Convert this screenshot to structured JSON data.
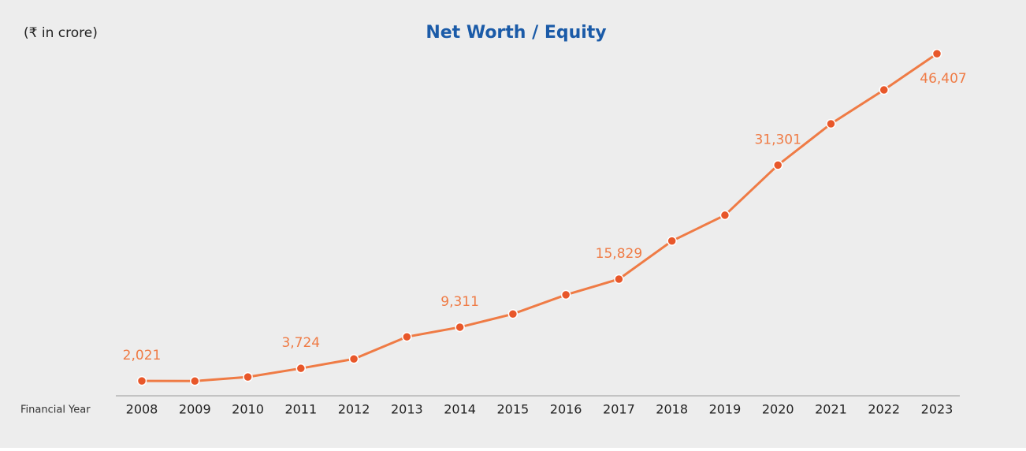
{
  "chart_data": {
    "type": "line",
    "title": "Net Worth / Equity",
    "unit_label": "(₹ in crore)",
    "xlabel": "Financial Year",
    "categories": [
      "2008",
      "2009",
      "2010",
      "2011",
      "2012",
      "2013",
      "2014",
      "2015",
      "2016",
      "2017",
      "2018",
      "2019",
      "2020",
      "2021",
      "2022",
      "2023"
    ],
    "series": [
      {
        "name": "Net Worth / Equity",
        "color": "#ef7b45",
        "values": [
          2021,
          2000,
          2550,
          3724,
          5000,
          8000,
          9311,
          11100,
          13700,
          15829,
          21000,
          24500,
          31301,
          36900,
          41500,
          46407
        ],
        "value_labels": [
          "2,021",
          null,
          null,
          "3,724",
          null,
          null,
          "9,311",
          null,
          null,
          "15,829",
          null,
          null,
          "31,301",
          null,
          null,
          "46,407"
        ]
      }
    ],
    "ylim": [
      0,
      50000
    ]
  }
}
